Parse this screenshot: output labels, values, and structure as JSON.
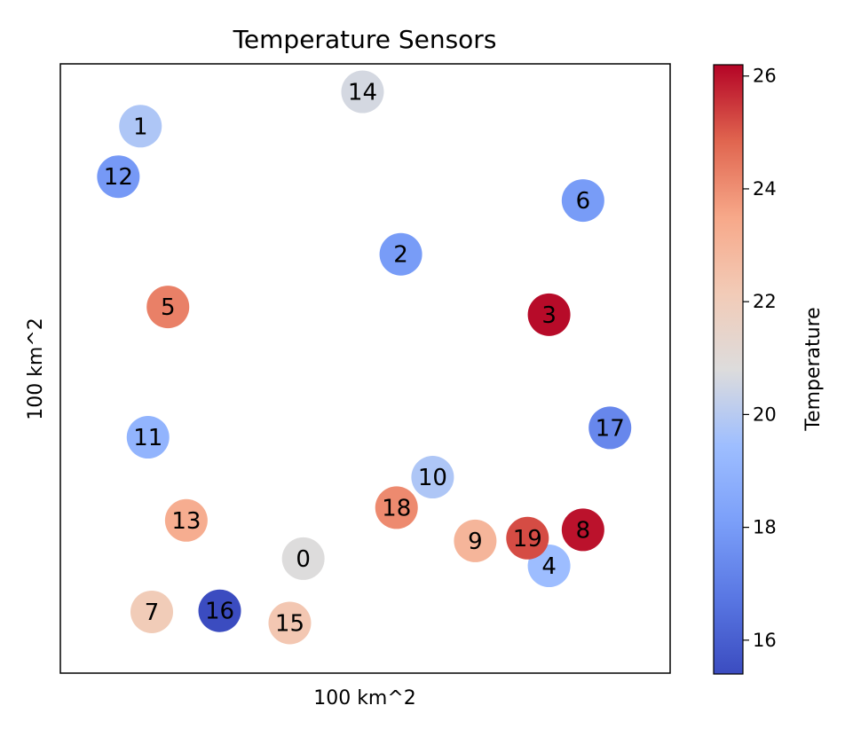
{
  "chart_data": {
    "type": "scatter",
    "title": "Temperature Sensors",
    "xlabel": "100 km^2",
    "ylabel": "100 km^2",
    "xlim": [
      0,
      1
    ],
    "ylim": [
      0,
      1
    ],
    "xticks_visible": false,
    "yticks_visible": false,
    "grid": false,
    "colormap": "coolwarm",
    "colorbar": {
      "label": "Temperature",
      "vmin": 15.4,
      "vmax": 26.2,
      "ticks": [
        16,
        18,
        20,
        22,
        24,
        26
      ],
      "tick_labels": [
        "16",
        "18",
        "20",
        "22",
        "24",
        "26"
      ]
    },
    "points": [
      {
        "label": "0",
        "x": 0.385,
        "y": 0.157,
        "temperature": 20.8
      },
      {
        "label": "1",
        "x": 0.083,
        "y": 0.937,
        "temperature": 19.8
      },
      {
        "label": "2",
        "x": 0.566,
        "y": 0.706,
        "temperature": 18.0
      },
      {
        "label": "3",
        "x": 0.841,
        "y": 0.597,
        "temperature": 26.1
      },
      {
        "label": "4",
        "x": 0.841,
        "y": 0.144,
        "temperature": 19.4
      },
      {
        "label": "5",
        "x": 0.134,
        "y": 0.611,
        "temperature": 24.3
      },
      {
        "label": "6",
        "x": 0.904,
        "y": 0.803,
        "temperature": 18.0
      },
      {
        "label": "7",
        "x": 0.104,
        "y": 0.061,
        "temperature": 22.1
      },
      {
        "label": "8",
        "x": 0.904,
        "y": 0.209,
        "temperature": 26.0
      },
      {
        "label": "9",
        "x": 0.704,
        "y": 0.189,
        "temperature": 23.0
      },
      {
        "label": "10",
        "x": 0.625,
        "y": 0.304,
        "temperature": 19.8
      },
      {
        "label": "11",
        "x": 0.097,
        "y": 0.376,
        "temperature": 19.0
      },
      {
        "label": "12",
        "x": 0.042,
        "y": 0.846,
        "temperature": 17.9
      },
      {
        "label": "13",
        "x": 0.168,
        "y": 0.226,
        "temperature": 23.3
      },
      {
        "label": "14",
        "x": 0.495,
        "y": 0.999,
        "temperature": 20.6
      },
      {
        "label": "15",
        "x": 0.36,
        "y": 0.041,
        "temperature": 22.3
      },
      {
        "label": "16",
        "x": 0.23,
        "y": 0.063,
        "temperature": 15.4
      },
      {
        "label": "17",
        "x": 0.954,
        "y": 0.393,
        "temperature": 17.3
      },
      {
        "label": "18",
        "x": 0.558,
        "y": 0.249,
        "temperature": 24.1
      },
      {
        "label": "19",
        "x": 0.801,
        "y": 0.194,
        "temperature": 25.2
      }
    ]
  }
}
